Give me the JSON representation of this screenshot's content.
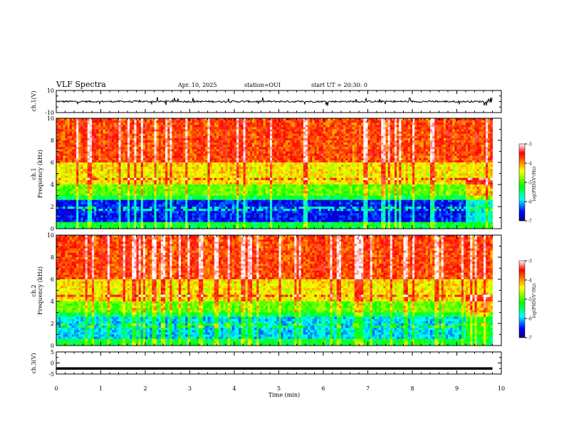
{
  "header": {
    "title": "VLF Spectra",
    "date": "Apr. 10, 2025",
    "station": "station=OUI",
    "start": "start UT =  20:30: 0"
  },
  "chart_data": [
    {
      "type": "line",
      "name": "ch1-waveform",
      "ylabel": "ch.1(V)",
      "ylim": [
        -10,
        10
      ],
      "yticks": [
        "10",
        "-10"
      ],
      "xlim": [
        0,
        10
      ],
      "line_color": "#000000",
      "description_level_V": 0
    },
    {
      "type": "heatmap",
      "name": "ch1-spectrogram",
      "ylabel": "ch.1\nFrequency (kHz)",
      "ylabel_lines": [
        "ch.1",
        "Frequency (kHz)"
      ],
      "ylim": [
        0,
        10
      ],
      "yticks": [
        "0",
        "2",
        "4",
        "6",
        "8",
        "10"
      ],
      "xlim": [
        0,
        10
      ],
      "data_end_min": 9.8,
      "colorbar": {
        "label": "log(PSD)(V²/Hz)",
        "range": [
          -7,
          -3
        ],
        "ticks": [
          "-3",
          "-4",
          "-5",
          "-6",
          "-7"
        ],
        "colors": [
          "#ffffff",
          "#ff0000",
          "#ffff00",
          "#00ff00",
          "#00ffff",
          "#0000ff",
          "#000080"
        ]
      }
    },
    {
      "type": "heatmap",
      "name": "ch2-spectrogram",
      "ylabel": "ch.2\nFrequency (kHz)",
      "ylabel_lines": [
        "ch.2",
        "Frequency (kHz)"
      ],
      "ylim": [
        0,
        10
      ],
      "yticks": [
        "0",
        "2",
        "4",
        "6",
        "8",
        "10"
      ],
      "xlim": [
        0,
        10
      ],
      "data_end_min": 9.8,
      "colorbar": {
        "label": "log(PSD)(V²/Hz)",
        "range": [
          -7,
          -3
        ],
        "ticks": [
          "-3",
          "-4",
          "-5",
          "-6",
          "-7"
        ],
        "colors": [
          "#ffffff",
          "#ff0000",
          "#ffff00",
          "#00ff00",
          "#00ffff",
          "#0000ff",
          "#000080"
        ]
      }
    },
    {
      "type": "line",
      "name": "ch3-trace",
      "ylabel": "ch.3(V)",
      "ylim": [
        -5,
        5
      ],
      "yticks": [
        "5",
        "0",
        "-5"
      ],
      "xlim": [
        0,
        10
      ],
      "constant_value_V": -2.5,
      "line_color": "#000000"
    }
  ],
  "xaxis": {
    "label": "Time (min)",
    "ticks": [
      "0",
      "1",
      "2",
      "3",
      "4",
      "5",
      "6",
      "7",
      "8",
      "9",
      "10"
    ]
  }
}
